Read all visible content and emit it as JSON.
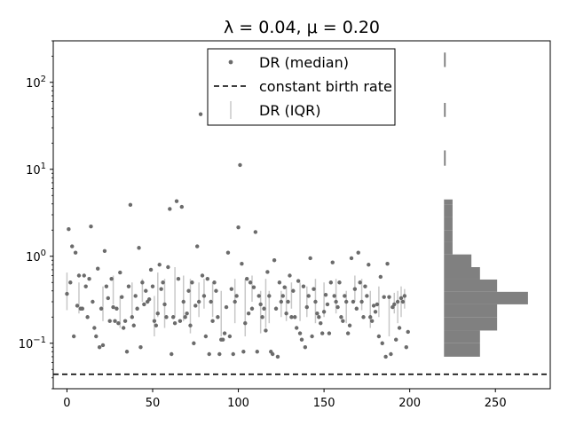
{
  "chart_data": {
    "type": "scatter",
    "title": "λ = 0.04, μ = 0.20",
    "xlabel": "",
    "ylabel": "",
    "xlim": [
      -8,
      282
    ],
    "ylim": [
      0.03,
      300
    ],
    "y_scale": "log",
    "x_ticks": [
      0,
      50,
      100,
      150,
      200,
      250
    ],
    "y_ticks": [
      0.1,
      1,
      10,
      100
    ],
    "y_tick_labels": [
      [
        "10",
        "−1"
      ],
      [
        "10",
        "0"
      ],
      [
        "10",
        "1"
      ],
      [
        "10",
        "2"
      ]
    ],
    "grid": false,
    "legend": {
      "placement": "top-center",
      "entries": [
        "DR (median)",
        "constant birth rate",
        "DR (IQR)"
      ]
    },
    "colors": {
      "median": "#6b6b6b",
      "iqr": "#c8c8c8",
      "constant": "#000000",
      "histogram": "#808080"
    },
    "constant_birth_rate": 0.044,
    "median_points": [
      [
        0,
        0.37
      ],
      [
        1,
        2.05
      ],
      [
        2,
        0.5
      ],
      [
        3,
        1.3
      ],
      [
        4,
        0.12
      ],
      [
        5,
        1.1
      ],
      [
        6,
        0.27
      ],
      [
        7,
        0.6
      ],
      [
        8,
        0.25
      ],
      [
        9,
        0.25
      ],
      [
        10,
        0.6
      ],
      [
        11,
        0.45
      ],
      [
        12,
        0.2
      ],
      [
        13,
        0.55
      ],
      [
        14,
        2.2
      ],
      [
        15,
        0.3
      ],
      [
        16,
        0.15
      ],
      [
        17,
        0.12
      ],
      [
        18,
        0.72
      ],
      [
        19,
        0.09
      ],
      [
        20,
        0.25
      ],
      [
        21,
        0.095
      ],
      [
        22,
        1.15
      ],
      [
        23,
        0.45
      ],
      [
        24,
        0.33
      ],
      [
        25,
        0.18
      ],
      [
        26,
        0.55
      ],
      [
        27,
        0.26
      ],
      [
        28,
        0.18
      ],
      [
        29,
        0.25
      ],
      [
        30,
        0.17
      ],
      [
        31,
        0.65
      ],
      [
        32,
        0.34
      ],
      [
        33,
        0.15
      ],
      [
        34,
        0.18
      ],
      [
        35,
        0.08
      ],
      [
        36,
        0.45
      ],
      [
        37,
        3.9
      ],
      [
        38,
        0.2
      ],
      [
        39,
        0.16
      ],
      [
        40,
        0.35
      ],
      [
        41,
        0.25
      ],
      [
        42,
        1.25
      ],
      [
        43,
        0.09
      ],
      [
        44,
        0.5
      ],
      [
        45,
        0.28
      ],
      [
        46,
        0.4
      ],
      [
        47,
        0.3
      ],
      [
        48,
        0.32
      ],
      [
        49,
        0.7
      ],
      [
        50,
        0.45
      ],
      [
        51,
        0.18
      ],
      [
        52,
        0.16
      ],
      [
        53,
        0.22
      ],
      [
        54,
        0.8
      ],
      [
        55,
        0.42
      ],
      [
        56,
        0.5
      ],
      [
        57,
        0.28
      ],
      [
        58,
        0.2
      ],
      [
        59,
        0.75
      ],
      [
        60,
        3.5
      ],
      [
        61,
        0.075
      ],
      [
        62,
        0.2
      ],
      [
        63,
        0.17
      ],
      [
        64,
        4.3
      ],
      [
        65,
        0.55
      ],
      [
        66,
        0.18
      ],
      [
        67,
        3.7
      ],
      [
        68,
        0.3
      ],
      [
        69,
        0.2
      ],
      [
        70,
        0.22
      ],
      [
        71,
        0.4
      ],
      [
        72,
        0.16
      ],
      [
        73,
        0.5
      ],
      [
        74,
        0.1
      ],
      [
        75,
        0.27
      ],
      [
        76,
        1.3
      ],
      [
        77,
        0.3
      ],
      [
        78,
        43
      ],
      [
        79,
        0.6
      ],
      [
        80,
        0.35
      ],
      [
        81,
        0.12
      ],
      [
        82,
        0.55
      ],
      [
        83,
        0.075
      ],
      [
        84,
        0.3
      ],
      [
        85,
        0.18
      ],
      [
        86,
        0.5
      ],
      [
        87,
        0.4
      ],
      [
        88,
        0.2
      ],
      [
        89,
        0.075
      ],
      [
        90,
        0.11
      ],
      [
        91,
        0.11
      ],
      [
        92,
        0.13
      ],
      [
        93,
        0.26
      ],
      [
        94,
        1.1
      ],
      [
        95,
        0.12
      ],
      [
        96,
        0.42
      ],
      [
        97,
        0.075
      ],
      [
        98,
        0.3
      ],
      [
        99,
        0.35
      ],
      [
        100,
        2.15
      ],
      [
        101,
        11.2
      ],
      [
        102,
        0.82
      ],
      [
        103,
        0.08
      ],
      [
        104,
        0.17
      ],
      [
        105,
        0.55
      ],
      [
        106,
        0.22
      ],
      [
        107,
        0.5
      ],
      [
        108,
        0.25
      ],
      [
        109,
        0.44
      ],
      [
        110,
        1.9
      ],
      [
        111,
        0.08
      ],
      [
        112,
        0.35
      ],
      [
        113,
        0.28
      ],
      [
        114,
        0.2
      ],
      [
        115,
        0.25
      ],
      [
        116,
        0.14
      ],
      [
        117,
        0.66
      ],
      [
        118,
        0.35
      ],
      [
        119,
        0.08
      ],
      [
        120,
        0.075
      ],
      [
        121,
        0.9
      ],
      [
        122,
        0.25
      ],
      [
        123,
        0.07
      ],
      [
        124,
        0.5
      ],
      [
        125,
        0.3
      ],
      [
        126,
        0.35
      ],
      [
        127,
        0.44
      ],
      [
        128,
        0.22
      ],
      [
        129,
        0.3
      ],
      [
        130,
        0.6
      ],
      [
        131,
        0.2
      ],
      [
        132,
        0.4
      ],
      [
        133,
        0.2
      ],
      [
        134,
        0.15
      ],
      [
        135,
        0.52
      ],
      [
        136,
        0.13
      ],
      [
        137,
        0.11
      ],
      [
        138,
        0.45
      ],
      [
        139,
        0.09
      ],
      [
        140,
        0.26
      ],
      [
        141,
        0.35
      ],
      [
        142,
        0.95
      ],
      [
        143,
        0.12
      ],
      [
        144,
        0.42
      ],
      [
        145,
        0.3
      ],
      [
        146,
        0.22
      ],
      [
        147,
        0.2
      ],
      [
        148,
        0.17
      ],
      [
        149,
        0.13
      ],
      [
        150,
        0.23
      ],
      [
        151,
        0.36
      ],
      [
        152,
        0.28
      ],
      [
        153,
        0.13
      ],
      [
        154,
        0.5
      ],
      [
        155,
        0.85
      ],
      [
        156,
        0.35
      ],
      [
        157,
        0.3
      ],
      [
        158,
        0.26
      ],
      [
        159,
        0.5
      ],
      [
        160,
        0.2
      ],
      [
        161,
        0.18
      ],
      [
        162,
        0.35
      ],
      [
        163,
        0.3
      ],
      [
        164,
        0.13
      ],
      [
        165,
        0.16
      ],
      [
        166,
        0.95
      ],
      [
        167,
        0.3
      ],
      [
        168,
        0.42
      ],
      [
        169,
        0.25
      ],
      [
        170,
        1.1
      ],
      [
        171,
        0.5
      ],
      [
        172,
        0.3
      ],
      [
        173,
        0.2
      ],
      [
        174,
        0.45
      ],
      [
        175,
        0.35
      ],
      [
        176,
        0.8
      ],
      [
        177,
        0.2
      ],
      [
        178,
        0.18
      ],
      [
        179,
        0.27
      ],
      [
        180,
        0.23
      ],
      [
        181,
        0.28
      ],
      [
        182,
        0.12
      ],
      [
        183,
        0.58
      ],
      [
        184,
        0.1
      ],
      [
        185,
        0.34
      ],
      [
        186,
        0.07
      ],
      [
        187,
        0.82
      ],
      [
        188,
        0.34
      ],
      [
        189,
        0.075
      ],
      [
        190,
        0.26
      ],
      [
        191,
        0.28
      ],
      [
        192,
        0.11
      ],
      [
        193,
        0.3
      ],
      [
        194,
        0.15
      ],
      [
        195,
        0.33
      ],
      [
        196,
        0.3
      ],
      [
        197,
        0.35
      ],
      [
        198,
        0.09
      ],
      [
        199,
        0.135
      ]
    ],
    "iqr_ranges": [
      [
        0,
        0.24,
        0.65
      ],
      [
        7,
        0.22,
        0.5
      ],
      [
        21,
        0.18,
        0.45
      ],
      [
        27,
        0.28,
        0.6
      ],
      [
        31,
        0.15,
        0.35
      ],
      [
        38,
        0.2,
        0.5
      ],
      [
        44,
        0.3,
        0.55
      ],
      [
        51,
        0.12,
        0.35
      ],
      [
        53,
        0.2,
        0.65
      ],
      [
        57,
        0.15,
        0.55
      ],
      [
        63,
        0.2,
        0.75
      ],
      [
        68,
        0.18,
        0.6
      ],
      [
        72,
        0.13,
        0.55
      ],
      [
        77,
        0.2,
        0.5
      ],
      [
        80,
        0.25,
        0.55
      ],
      [
        85,
        0.2,
        0.5
      ],
      [
        90,
        0.12,
        0.4
      ],
      [
        98,
        0.17,
        0.55
      ],
      [
        104,
        0.12,
        0.55
      ],
      [
        108,
        0.3,
        0.6
      ],
      [
        113,
        0.13,
        0.4
      ],
      [
        116,
        0.15,
        0.55
      ],
      [
        118,
        0.17,
        0.4
      ],
      [
        125,
        0.2,
        0.4
      ],
      [
        128,
        0.18,
        0.45
      ],
      [
        131,
        0.25,
        0.5
      ],
      [
        136,
        0.18,
        0.5
      ],
      [
        140,
        0.2,
        0.45
      ],
      [
        145,
        0.17,
        0.55
      ],
      [
        150,
        0.2,
        0.5
      ],
      [
        157,
        0.22,
        0.55
      ],
      [
        163,
        0.17,
        0.4
      ],
      [
        168,
        0.3,
        0.6
      ],
      [
        172,
        0.24,
        0.55
      ],
      [
        177,
        0.15,
        0.4
      ],
      [
        182,
        0.2,
        0.45
      ],
      [
        188,
        0.12,
        0.35
      ],
      [
        191,
        0.22,
        0.38
      ],
      [
        193,
        0.17,
        0.4
      ],
      [
        195,
        0.2,
        0.45
      ],
      [
        197,
        0.25,
        0.42
      ]
    ],
    "histogram": {
      "orientation": "horizontal",
      "x_start": 220,
      "bins": [
        [
          0.07,
          0.1,
          21
        ],
        [
          0.1,
          0.14,
          21
        ],
        [
          0.14,
          0.2,
          31
        ],
        [
          0.2,
          0.28,
          31
        ],
        [
          0.28,
          0.39,
          49
        ],
        [
          0.39,
          0.54,
          31
        ],
        [
          0.54,
          0.75,
          21
        ],
        [
          0.75,
          1.05,
          16
        ],
        [
          1.05,
          1.45,
          5
        ],
        [
          1.45,
          2.0,
          5
        ],
        [
          2.0,
          2.8,
          5
        ],
        [
          2.8,
          3.9,
          5
        ],
        [
          3.9,
          4.5,
          5
        ],
        [
          11.0,
          16.5,
          1
        ],
        [
          40,
          58,
          1
        ],
        [
          150,
          220,
          1
        ]
      ]
    }
  }
}
